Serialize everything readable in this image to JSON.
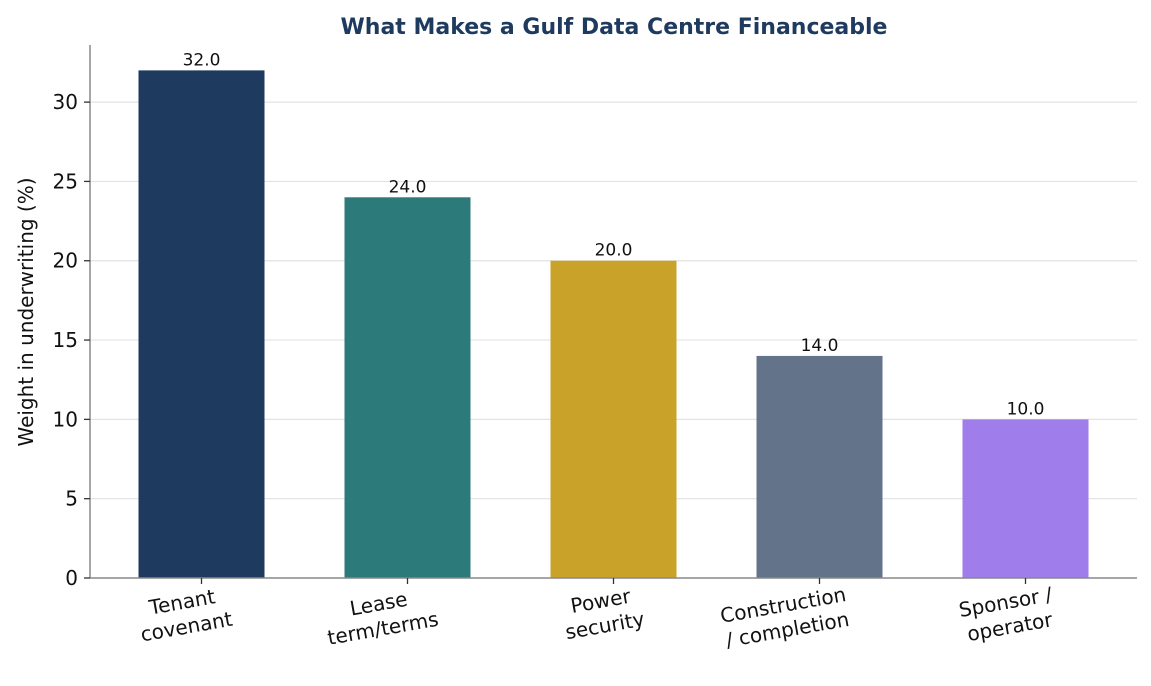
{
  "chart_data": {
    "type": "bar",
    "title": "What Makes a Gulf Data Centre Financeable",
    "xlabel": "",
    "ylabel": "Weight in underwriting (%)",
    "ylim": [
      0,
      33.6
    ],
    "yticks": [
      0,
      5,
      10,
      15,
      20,
      25,
      30
    ],
    "grid": "horizontal",
    "legend": "none",
    "categories": [
      [
        "Tenant",
        "covenant"
      ],
      [
        "Lease",
        "term/terms"
      ],
      [
        "Power",
        "security"
      ],
      [
        "Construction",
        "/ completion"
      ],
      [
        "Sponsor /",
        "operator"
      ]
    ],
    "values": [
      32.0,
      24.0,
      20.0,
      14.0,
      10.0
    ],
    "data_labels": [
      "32.0",
      "24.0",
      "20.0",
      "14.0",
      "10.0"
    ],
    "colors": [
      "#1f3a5f",
      "#2d7a7b",
      "#c9a22a",
      "#62738a",
      "#9f7deb"
    ]
  }
}
